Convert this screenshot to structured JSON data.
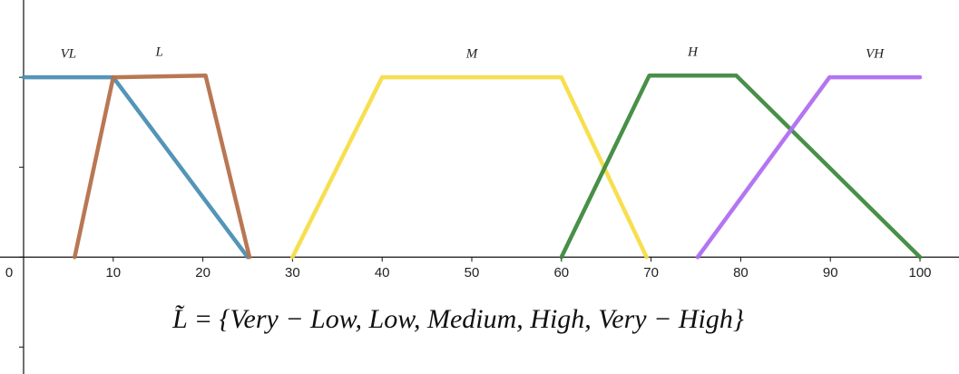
{
  "chart_data": {
    "type": "line",
    "annotation": "L̃ = {Very − Low, Low, Medium, High, Very − High}",
    "xlim": [
      -2.63,
      104.35
    ],
    "ylim": [
      -0.65,
      1.43
    ],
    "xticks": [
      0,
      10,
      20,
      30,
      40,
      50,
      60,
      70,
      80,
      90,
      100
    ],
    "yticks": [
      -0.5,
      0,
      0.5,
      1
    ],
    "series": [
      {
        "name": "VL",
        "color": "#4a8fb5",
        "x": [
          0,
          10,
          25
        ],
        "values": [
          1,
          1,
          0
        ]
      },
      {
        "name": "L",
        "color": "#b5704a",
        "x": [
          5.7,
          10,
          20.3,
          25.2
        ],
        "values": [
          0,
          1,
          1.01,
          0
        ]
      },
      {
        "name": "M",
        "color": "#f7dd45",
        "x": [
          30,
          40,
          60,
          69.5
        ],
        "values": [
          0,
          1,
          1,
          0
        ]
      },
      {
        "name": "H",
        "color": "#3e8a3e",
        "x": [
          60,
          69.8,
          79.5,
          100
        ],
        "values": [
          0,
          1.01,
          1.01,
          0
        ]
      },
      {
        "name": "VH",
        "color": "#b06ef0",
        "x": [
          75.2,
          89.9,
          100
        ],
        "values": [
          0,
          1,
          1
        ]
      }
    ]
  }
}
